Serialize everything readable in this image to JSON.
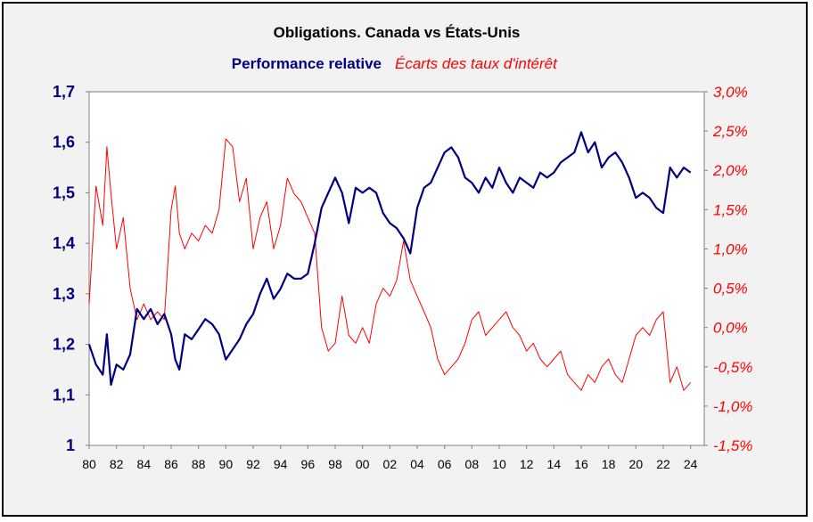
{
  "chart_data": {
    "type": "line",
    "title": "Obligations. Canada vs États-Unis",
    "colors": {
      "left": "#000080",
      "right": "#ff0000",
      "plot_bg": "#ffffff",
      "panel_bg": "#f2f2f2"
    },
    "x_tick_labels": [
      "80",
      "82",
      "84",
      "86",
      "88",
      "90",
      "92",
      "94",
      "96",
      "98",
      "00",
      "02",
      "04",
      "06",
      "08",
      "10",
      "12",
      "14",
      "16",
      "18",
      "20",
      "22",
      "24"
    ],
    "x_ticks": [
      1980,
      1982,
      1984,
      1986,
      1988,
      1990,
      1992,
      1994,
      1996,
      1998,
      2000,
      2002,
      2004,
      2006,
      2008,
      2010,
      2012,
      2014,
      2016,
      2018,
      2020,
      2022,
      2024
    ],
    "xlim": [
      1980,
      2025
    ],
    "left_axis": {
      "ylim": [
        1.0,
        1.7
      ],
      "ticks": [
        1,
        1.1,
        1.2,
        1.3,
        1.4,
        1.5,
        1.6,
        1.7
      ],
      "tick_labels": [
        "1",
        "1,1",
        "1,2",
        "1,3",
        "1,4",
        "1,5",
        "1,6",
        "1,7"
      ]
    },
    "right_axis": {
      "ylim": [
        -1.5,
        3.0
      ],
      "ticks": [
        -1.5,
        -1.0,
        -0.5,
        0.0,
        0.5,
        1.0,
        1.5,
        2.0,
        2.5,
        3.0
      ],
      "tick_labels": [
        "-1,5%",
        "-1,0%",
        "-0,5%",
        "0,0%",
        "0,5%",
        "1,0%",
        "1,5%",
        "2,0%",
        "2,5%",
        "3,0%"
      ]
    },
    "series": [
      {
        "name": "Performance relative",
        "axis": "left",
        "x": [
          1980.0,
          1980.5,
          1981.0,
          1981.3,
          1981.6,
          1982.0,
          1982.5,
          1983.0,
          1983.5,
          1984.0,
          1984.5,
          1985.0,
          1985.5,
          1986.0,
          1986.3,
          1986.6,
          1987.0,
          1987.5,
          1988.0,
          1988.5,
          1989.0,
          1989.5,
          1990.0,
          1990.5,
          1991.0,
          1991.5,
          1992.0,
          1992.5,
          1993.0,
          1993.5,
          1994.0,
          1994.5,
          1995.0,
          1995.5,
          1996.0,
          1996.5,
          1997.0,
          1997.5,
          1998.0,
          1998.5,
          1999.0,
          1999.5,
          2000.0,
          2000.5,
          2001.0,
          2001.5,
          2002.0,
          2002.5,
          2003.0,
          2003.5,
          2004.0,
          2004.5,
          2005.0,
          2005.5,
          2006.0,
          2006.5,
          2007.0,
          2007.5,
          2008.0,
          2008.5,
          2009.0,
          2009.5,
          2010.0,
          2010.5,
          2011.0,
          2011.5,
          2012.0,
          2012.5,
          2013.0,
          2013.5,
          2014.0,
          2014.5,
          2015.0,
          2015.5,
          2016.0,
          2016.5,
          2017.0,
          2017.5,
          2018.0,
          2018.5,
          2019.0,
          2019.5,
          2020.0,
          2020.5,
          2021.0,
          2021.5,
          2022.0,
          2022.5,
          2023.0,
          2023.5,
          2024.0
        ],
        "values": [
          1.2,
          1.16,
          1.14,
          1.22,
          1.12,
          1.16,
          1.15,
          1.18,
          1.27,
          1.25,
          1.27,
          1.24,
          1.26,
          1.22,
          1.17,
          1.15,
          1.22,
          1.21,
          1.23,
          1.25,
          1.24,
          1.22,
          1.17,
          1.19,
          1.21,
          1.24,
          1.26,
          1.3,
          1.33,
          1.29,
          1.31,
          1.34,
          1.33,
          1.33,
          1.34,
          1.4,
          1.47,
          1.5,
          1.53,
          1.5,
          1.44,
          1.51,
          1.5,
          1.51,
          1.5,
          1.46,
          1.44,
          1.43,
          1.41,
          1.38,
          1.47,
          1.51,
          1.52,
          1.55,
          1.58,
          1.59,
          1.57,
          1.53,
          1.52,
          1.5,
          1.53,
          1.51,
          1.55,
          1.52,
          1.5,
          1.53,
          1.52,
          1.51,
          1.54,
          1.53,
          1.54,
          1.56,
          1.57,
          1.58,
          1.62,
          1.58,
          1.6,
          1.55,
          1.57,
          1.58,
          1.56,
          1.53,
          1.49,
          1.5,
          1.49,
          1.47,
          1.46,
          1.55,
          1.53,
          1.55,
          1.54
        ]
      },
      {
        "name": "Écarts des taux d'intérêt",
        "axis": "right",
        "x": [
          1980.0,
          1980.5,
          1981.0,
          1981.3,
          1981.6,
          1982.0,
          1982.5,
          1983.0,
          1983.5,
          1984.0,
          1984.5,
          1985.0,
          1985.5,
          1986.0,
          1986.3,
          1986.6,
          1987.0,
          1987.5,
          1988.0,
          1988.5,
          1989.0,
          1989.5,
          1990.0,
          1990.5,
          1991.0,
          1991.5,
          1992.0,
          1992.5,
          1993.0,
          1993.5,
          1994.0,
          1994.5,
          1995.0,
          1995.5,
          1996.0,
          1996.5,
          1997.0,
          1997.5,
          1998.0,
          1998.5,
          1999.0,
          1999.5,
          2000.0,
          2000.5,
          2001.0,
          2001.5,
          2002.0,
          2002.5,
          2003.0,
          2003.5,
          2004.0,
          2004.5,
          2005.0,
          2005.5,
          2006.0,
          2006.5,
          2007.0,
          2007.5,
          2008.0,
          2008.5,
          2009.0,
          2009.5,
          2010.0,
          2010.5,
          2011.0,
          2011.5,
          2012.0,
          2012.5,
          2013.0,
          2013.5,
          2014.0,
          2014.5,
          2015.0,
          2015.5,
          2016.0,
          2016.5,
          2017.0,
          2017.5,
          2018.0,
          2018.5,
          2019.0,
          2019.5,
          2020.0,
          2020.5,
          2021.0,
          2021.5,
          2022.0,
          2022.5,
          2023.0,
          2023.5,
          2024.0
        ],
        "values": [
          0.3,
          1.8,
          1.3,
          2.3,
          1.7,
          1.0,
          1.4,
          0.5,
          0.1,
          0.3,
          0.1,
          0.2,
          0.1,
          1.5,
          1.8,
          1.2,
          1.0,
          1.2,
          1.1,
          1.3,
          1.2,
          1.5,
          2.4,
          2.3,
          1.6,
          1.9,
          1.0,
          1.4,
          1.6,
          1.0,
          1.3,
          1.9,
          1.7,
          1.6,
          1.4,
          1.2,
          0.0,
          -0.3,
          -0.2,
          0.4,
          -0.1,
          -0.2,
          0.0,
          -0.2,
          0.3,
          0.5,
          0.4,
          0.6,
          1.1,
          0.6,
          0.4,
          0.2,
          0.0,
          -0.4,
          -0.6,
          -0.5,
          -0.4,
          -0.2,
          0.1,
          0.2,
          -0.1,
          0.0,
          0.1,
          0.2,
          0.0,
          -0.1,
          -0.3,
          -0.2,
          -0.4,
          -0.5,
          -0.4,
          -0.3,
          -0.6,
          -0.7,
          -0.8,
          -0.6,
          -0.7,
          -0.5,
          -0.4,
          -0.6,
          -0.7,
          -0.4,
          -0.1,
          0.0,
          -0.1,
          0.1,
          0.2,
          -0.7,
          -0.5,
          -0.8,
          -0.7
        ]
      }
    ],
    "grid": false,
    "legend": "top-center"
  }
}
